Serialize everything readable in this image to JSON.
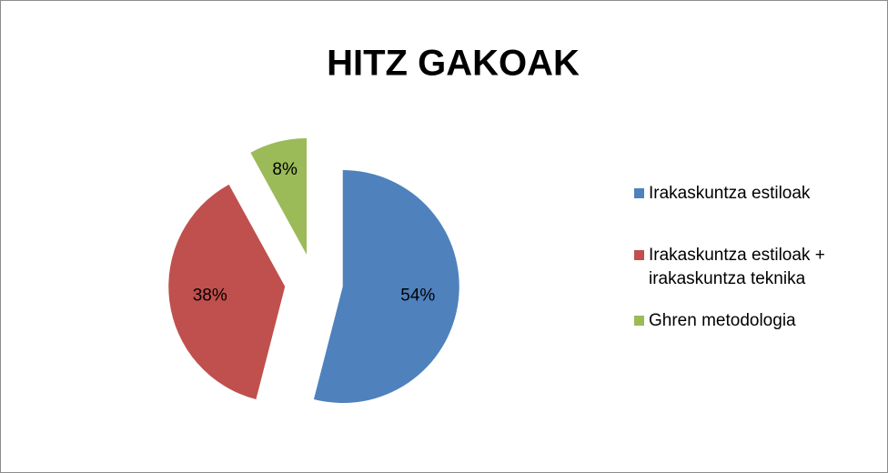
{
  "chart_data": {
    "type": "pie",
    "title": "HITZ GAKOAK",
    "categories": [
      "Irakaskuntza estiloak",
      "Irakaskuntza estiloak + irakaskuntza teknika",
      "Ghren metodologia"
    ],
    "values": [
      54,
      38,
      8
    ],
    "value_labels": [
      "54%",
      "38%",
      "8%"
    ],
    "colors": [
      "#4f81bd",
      "#c0504d",
      "#9bbb59"
    ],
    "legend": "right",
    "exploded": true
  }
}
